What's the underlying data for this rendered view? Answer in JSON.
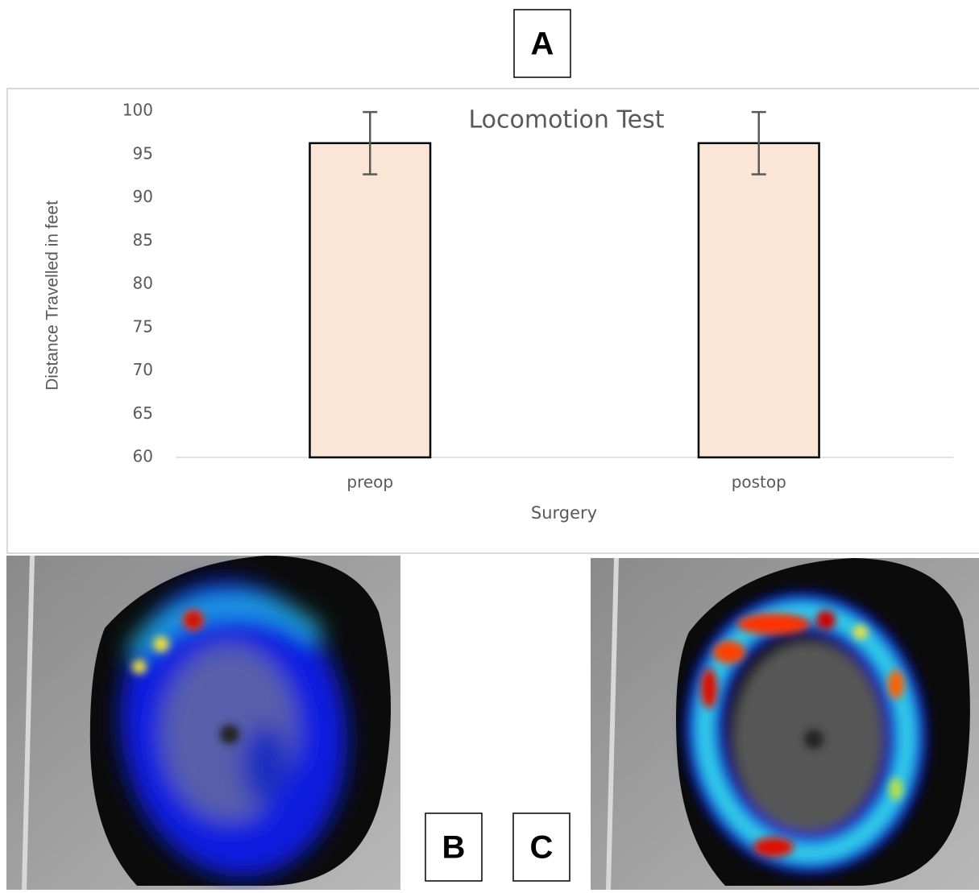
{
  "panels": [
    "A",
    "B",
    "C"
  ],
  "chart_data": {
    "type": "bar",
    "title": "Locomotion Test",
    "x_label": "Surgery",
    "y_label": "Distance Travelled in feet",
    "categories": [
      "preop",
      "postop"
    ],
    "values": [
      96.3,
      96.3
    ],
    "errors": [
      3.6,
      3.6
    ],
    "color": "#fbe5d6",
    "edge_color": "#000000",
    "error_color": "#595959",
    "ylim": [
      60,
      100
    ],
    "yticks": [
      60,
      65,
      70,
      75,
      80,
      85,
      90,
      95,
      100
    ],
    "grid": false
  }
}
